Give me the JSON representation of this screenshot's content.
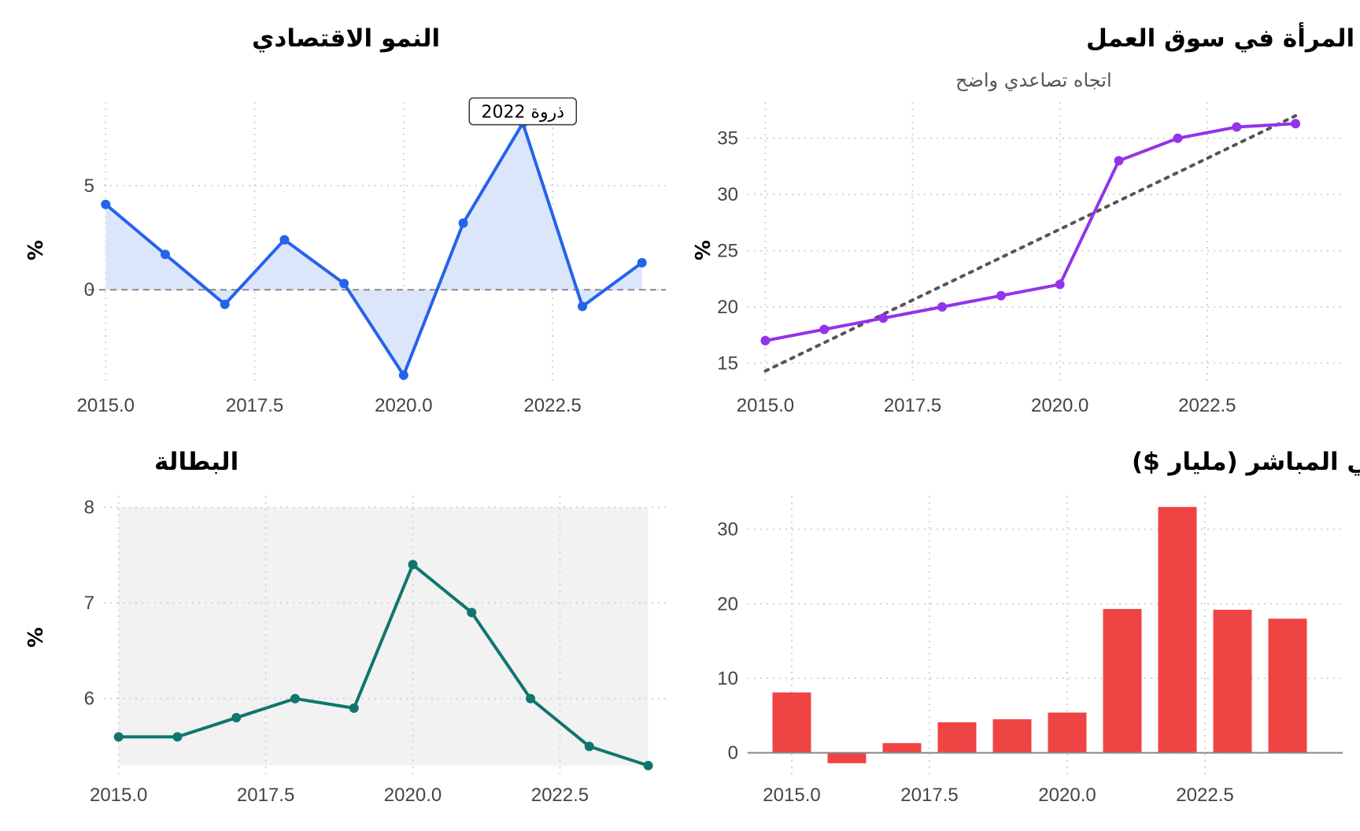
{
  "chart_data": [
    {
      "id": "growth",
      "type": "area",
      "title": "النمو الاقتصادي",
      "subtitle": "",
      "ylabel": "%",
      "xlabel": "",
      "x": [
        2015,
        2016,
        2017,
        2018,
        2019,
        2020,
        2021,
        2022,
        2023,
        2024
      ],
      "values": [
        4.1,
        1.7,
        -0.7,
        2.4,
        0.3,
        -4.1,
        3.2,
        8.0,
        -0.8,
        1.3
      ],
      "xlim": [
        2014.97,
        2024.4
      ],
      "ylim": [
        -4.6,
        9.0
      ],
      "xticks": [
        2015,
        2017.5,
        2020,
        2022.5
      ],
      "xtick_labels": [
        "2015.0",
        "2017.5",
        "2020.0",
        "2022.5"
      ],
      "yticks": [
        0,
        5
      ],
      "ytick_labels": [
        "0",
        "5"
      ],
      "annotation": {
        "text": "ذروة 2022",
        "x": 2022,
        "y": 8.0
      },
      "reference_line": {
        "y": 0,
        "style": "dashed"
      },
      "colors": {
        "line": "#2563eb",
        "fill": "#dce6fb",
        "ref": "#8a8a8a"
      },
      "grid": true
    },
    {
      "id": "women",
      "type": "line",
      "title": "مشاركة المرأة في سوق العمل",
      "subtitle": "اتجاه تصاعدي واضح",
      "ylabel": "%",
      "xlabel": "",
      "x": [
        2015,
        2016,
        2017,
        2018,
        2019,
        2020,
        2021,
        2022,
        2023,
        2024
      ],
      "values": [
        17,
        18,
        19,
        20,
        21,
        22,
        33,
        35,
        36,
        36.3
      ],
      "trend": {
        "x": [
          2015,
          2024
        ],
        "y": [
          14.3,
          37.0
        ],
        "style": "dotted"
      },
      "xlim": [
        2014.7,
        2024.8
      ],
      "ylim": [
        13.0,
        38.2
      ],
      "xticks": [
        2015,
        2017.5,
        2020,
        2022.5
      ],
      "xtick_labels": [
        "2015.0",
        "2017.5",
        "2020.0",
        "2022.5"
      ],
      "yticks": [
        15,
        20,
        25,
        30,
        35
      ],
      "ytick_labels": [
        "15",
        "20",
        "25",
        "30",
        "35"
      ],
      "colors": {
        "line": "#9333ea",
        "trend": "#555555"
      },
      "grid": true
    },
    {
      "id": "unemployment",
      "type": "line",
      "title": "البطالة",
      "subtitle": "",
      "ylabel": "%",
      "xlabel": "",
      "x": [
        2015,
        2016,
        2017,
        2018,
        2019,
        2020,
        2021,
        2022,
        2023,
        2024
      ],
      "values": [
        5.6,
        5.6,
        5.8,
        6.0,
        5.9,
        7.4,
        6.9,
        6.0,
        5.5,
        5.3
      ],
      "band": {
        "ymin": 5.3,
        "ymax": 8.0
      },
      "xlim": [
        2014.75,
        2024.3
      ],
      "ylim": [
        5.2,
        8.12
      ],
      "xticks": [
        2015,
        2017.5,
        2020,
        2022.5
      ],
      "xtick_labels": [
        "2015.0",
        "2017.5",
        "2020.0",
        "2022.5"
      ],
      "yticks": [
        6,
        7,
        8
      ],
      "ytick_labels": [
        "6",
        "7",
        "8"
      ],
      "colors": {
        "line": "#0f766e",
        "band": "#f2f2f2"
      },
      "grid": true
    },
    {
      "id": "fdi",
      "type": "bar",
      "title": "الاستثمار الأجنبي المباشر (مليار $)",
      "subtitle": "",
      "ylabel": "",
      "xlabel": "",
      "x": [
        2015,
        2016,
        2017,
        2018,
        2019,
        2020,
        2021,
        2022,
        2023,
        2024
      ],
      "values": [
        8.1,
        -1.4,
        1.3,
        4.1,
        4.5,
        5.4,
        19.3,
        33.0,
        19.2,
        18.0
      ],
      "xlim": [
        2014.2,
        2025.0
      ],
      "ylim": [
        -3.0,
        34.5
      ],
      "xticks": [
        2015,
        2017.5,
        2020,
        2022.5
      ],
      "xtick_labels": [
        "2015.0",
        "2017.5",
        "2020.0",
        "2022.5"
      ],
      "yticks": [
        0,
        10,
        20,
        30
      ],
      "ytick_labels": [
        "0",
        "10",
        "20",
        "30"
      ],
      "colors": {
        "bar": "#ef4444",
        "zero": "#888888"
      },
      "grid": true
    }
  ]
}
